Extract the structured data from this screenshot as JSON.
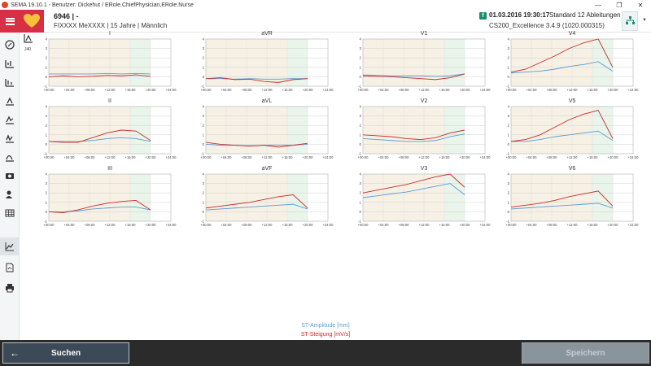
{
  "window": {
    "title": "SEMA 19.10.1 - Benutzer: Dickehut / ERole.ChiefPhysician,ERole.Nurse",
    "controls": [
      "—",
      "❐",
      "✕"
    ]
  },
  "header": {
    "patient_id": "6946 | -",
    "patient_info": "FIXXXX MeXXXX | 15 Jahre | Männlich",
    "record_icon": "f",
    "record_datetime": "01.03.2016 19:30:17",
    "record_type": "Standard 12 Ableitungen",
    "record_device": "CS200_Excellence 3.4.9 (1020.000315)"
  },
  "sidebar": {
    "items": [
      {
        "icon": "compass-icon"
      },
      {
        "icon": "lead-1-icon"
      },
      {
        "icon": "lead-2-icon"
      },
      {
        "icon": "lead-3-icon"
      },
      {
        "icon": "lead-4-icon"
      },
      {
        "icon": "lead-5-icon"
      },
      {
        "icon": "lead-6-icon"
      },
      {
        "icon": "camera-icon"
      },
      {
        "icon": "user-edit-icon"
      },
      {
        "icon": "table-icon"
      },
      {
        "icon": "trend-chart-icon"
      },
      {
        "icon": "pdf-icon"
      },
      {
        "icon": "print-icon"
      }
    ]
  },
  "lead_selector": {
    "label": "J40"
  },
  "chart_data": {
    "type": "line",
    "x_ticks": [
      "+00:00",
      "+04:00",
      "+08:00",
      "+12:00",
      "+16:00",
      "+20:00",
      "+24:00"
    ],
    "y_ticks": [
      "-1",
      "0",
      "1",
      "2",
      "3",
      "4"
    ],
    "xlim": [
      0,
      24
    ],
    "ylim": [
      -1,
      4
    ],
    "panels": [
      {
        "title": "I",
        "slope": [
          0.0,
          0.1,
          0.0,
          0.05,
          0.15,
          0.1,
          0.2,
          0.05
        ],
        "amplitude": [
          0.3,
          0.3,
          0.3,
          0.3,
          0.35,
          0.3,
          0.35,
          0.3
        ]
      },
      {
        "title": "aVR",
        "slope": [
          -0.2,
          -0.1,
          -0.3,
          -0.25,
          -0.5,
          -0.6,
          -0.3,
          -0.2
        ],
        "amplitude": [
          -0.2,
          -0.2,
          -0.25,
          -0.2,
          -0.25,
          -0.25,
          -0.2,
          -0.2
        ]
      },
      {
        "title": "V1",
        "slope": [
          0.1,
          0.05,
          0.0,
          -0.1,
          -0.2,
          -0.3,
          -0.1,
          0.3
        ],
        "amplitude": [
          0.2,
          0.15,
          0.1,
          0.1,
          0.1,
          0.05,
          0.1,
          0.3
        ]
      },
      {
        "title": "V4",
        "slope": [
          0.5,
          0.8,
          1.5,
          2.2,
          3.0,
          3.6,
          4.2,
          1.0
        ],
        "amplitude": [
          0.4,
          0.5,
          0.6,
          0.8,
          1.1,
          1.3,
          1.6,
          0.6
        ]
      },
      {
        "title": "II",
        "slope": [
          0.3,
          0.2,
          0.2,
          0.7,
          1.2,
          1.5,
          1.4,
          0.4
        ],
        "amplitude": [
          0.3,
          0.3,
          0.3,
          0.4,
          0.6,
          0.7,
          0.6,
          0.3
        ]
      },
      {
        "title": "aVL",
        "slope": [
          0.2,
          0.0,
          -0.1,
          -0.2,
          -0.1,
          -0.3,
          -0.1,
          0.1
        ],
        "amplitude": [
          0.0,
          -0.1,
          -0.1,
          -0.15,
          -0.1,
          -0.1,
          -0.1,
          0.0
        ]
      },
      {
        "title": "V2",
        "slope": [
          1.0,
          0.9,
          0.8,
          0.6,
          0.5,
          0.7,
          1.2,
          1.5
        ],
        "amplitude": [
          0.6,
          0.5,
          0.4,
          0.3,
          0.3,
          0.4,
          0.8,
          1.1
        ]
      },
      {
        "title": "V5",
        "slope": [
          0.3,
          0.5,
          1.0,
          1.8,
          2.6,
          3.2,
          3.6,
          0.6
        ],
        "amplitude": [
          0.3,
          0.3,
          0.5,
          0.8,
          1.0,
          1.2,
          1.4,
          0.4
        ]
      },
      {
        "title": "III",
        "slope": [
          0.0,
          -0.1,
          0.2,
          0.6,
          0.9,
          1.1,
          1.2,
          0.2
        ],
        "amplitude": [
          0.0,
          0.0,
          0.1,
          0.3,
          0.4,
          0.5,
          0.5,
          0.2
        ]
      },
      {
        "title": "aVF",
        "slope": [
          0.4,
          0.6,
          0.8,
          1.0,
          1.3,
          1.6,
          1.8,
          0.4
        ],
        "amplitude": [
          0.2,
          0.3,
          0.4,
          0.5,
          0.6,
          0.7,
          0.8,
          0.3
        ]
      },
      {
        "title": "V3",
        "slope": [
          2.0,
          2.3,
          2.6,
          2.9,
          3.3,
          3.7,
          4.0,
          2.6
        ],
        "amplitude": [
          1.5,
          1.7,
          1.9,
          2.1,
          2.4,
          2.7,
          3.0,
          1.8
        ]
      },
      {
        "title": "V6",
        "slope": [
          0.5,
          0.7,
          0.9,
          1.2,
          1.6,
          1.9,
          2.2,
          0.6
        ],
        "amplitude": [
          0.3,
          0.4,
          0.5,
          0.6,
          0.7,
          0.8,
          0.9,
          0.4
        ]
      }
    ],
    "legend": {
      "amplitude": "ST-Amplitude [mm]",
      "slope": "ST-Steigung [mV/s]"
    },
    "colors": {
      "amplitude": "#5b9bd5",
      "slope": "#cc2a2a",
      "night_band": "#f6f1e4",
      "day_band": "#e9f4ea"
    }
  },
  "footer": {
    "search_label": "Suchen",
    "save_label": "Speichern"
  }
}
